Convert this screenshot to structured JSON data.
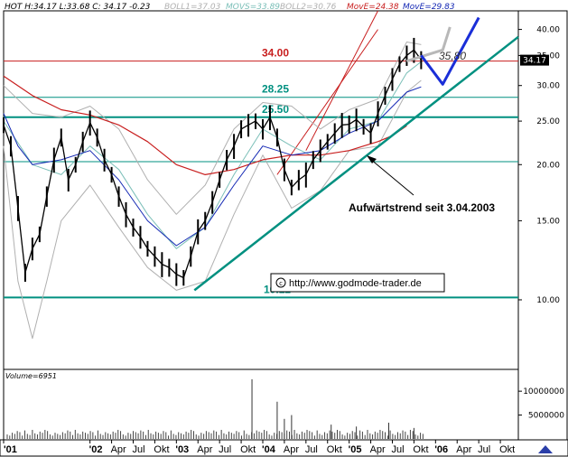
{
  "header": {
    "ticker_line": "HOT H:34.17 L:33.68 C: 34.17 -0.23",
    "boll1": "BOLL1=37.03",
    "movs": "MOVS=33.89",
    "boll2": "BOLL2=30.76",
    "move1": "MovE=24.38",
    "move2": "MovE=29.83"
  },
  "colors": {
    "price": "#000000",
    "boll": "#b0b0b0",
    "movs": "#7bbfb8",
    "move_red": "#c81e1e",
    "move_blue": "#1428b4",
    "level_teal": "#009080",
    "level_red": "#c81e1e",
    "trend_teal": "#009080",
    "projection_blue": "#1a2ed8",
    "projection_gray": "#b8b8b8",
    "channel_red": "#c81e1e",
    "grid": "#000000"
  },
  "chart_data": {
    "type": "line",
    "title": "",
    "x_ticks": [
      "'01",
      "'02",
      "Apr",
      "Jul",
      "Okt",
      "'03",
      "Apr",
      "Jul",
      "Okt",
      "'04",
      "Apr",
      "Jul",
      "Okt",
      "'05",
      "Apr",
      "Jul",
      "Okt",
      "'06",
      "Apr",
      "Jul",
      "Okt"
    ],
    "x_tick_months": [
      0,
      12,
      15,
      18,
      21,
      24,
      27,
      30,
      33,
      36,
      39,
      42,
      45,
      48,
      51,
      54,
      57,
      60,
      63,
      66,
      69
    ],
    "x_range_months": [
      0,
      71.5
    ],
    "y_ticks": [
      10,
      15,
      20,
      25,
      30,
      35,
      40
    ],
    "y_ticks_labels": [
      "10.00",
      "15.00",
      "20.00",
      "25.00",
      "30.00",
      "35.00",
      "40.00"
    ],
    "y_range": [
      7,
      44
    ],
    "y_scale": "log",
    "last_price": "34.17",
    "levels": [
      {
        "value": 34.0,
        "label": "34.00",
        "color": "#c81e1e"
      },
      {
        "value": 28.25,
        "label": "28.25",
        "color": "#009080"
      },
      {
        "value": 25.5,
        "label": "25.50",
        "color": "#009080"
      },
      {
        "value": 20.3,
        "label": "",
        "color": "#009080"
      },
      {
        "value": 10.12,
        "label": "10.12",
        "color": "#009080"
      }
    ],
    "annotations": {
      "trend_label": "Aufwärtstrend seit 3.04.2003",
      "target_label": "35,80",
      "copyright": "http://www.godmode-trader.de"
    },
    "price_series": [
      [
        0,
        24.5
      ],
      [
        1,
        22.0
      ],
      [
        2,
        16.0
      ],
      [
        3,
        11.5
      ],
      [
        4,
        13.0
      ],
      [
        5,
        14.0
      ],
      [
        6,
        17.0
      ],
      [
        7,
        20.5
      ],
      [
        8,
        23.0
      ],
      [
        9,
        18.5
      ],
      [
        10,
        20.0
      ],
      [
        11,
        22.5
      ],
      [
        12,
        24.8
      ],
      [
        13,
        23.0
      ],
      [
        14,
        20.5
      ],
      [
        15,
        19.0
      ],
      [
        16,
        17.0
      ],
      [
        17,
        15.5
      ],
      [
        18,
        14.5
      ],
      [
        19,
        13.8
      ],
      [
        20,
        13.0
      ],
      [
        21,
        12.5
      ],
      [
        22,
        12.0
      ],
      [
        23,
        11.8
      ],
      [
        24,
        11.4
      ],
      [
        25,
        11.2
      ],
      [
        26,
        12.5
      ],
      [
        27,
        14.2
      ],
      [
        28,
        15.0
      ],
      [
        29,
        16.5
      ],
      [
        30,
        18.5
      ],
      [
        31,
        20.5
      ],
      [
        32,
        22.0
      ],
      [
        33,
        24.0
      ],
      [
        34,
        24.5
      ],
      [
        35,
        25.0
      ],
      [
        36,
        24.0
      ],
      [
        37,
        25.5
      ],
      [
        38,
        23.0
      ],
      [
        39,
        19.5
      ],
      [
        40,
        17.8
      ],
      [
        41,
        18.5
      ],
      [
        42,
        19.0
      ],
      [
        43,
        20.5
      ],
      [
        44,
        21.5
      ],
      [
        45,
        22.5
      ],
      [
        46,
        23.5
      ],
      [
        47,
        24.5
      ],
      [
        48,
        24.6
      ],
      [
        49,
        25.2
      ],
      [
        50,
        24.3
      ],
      [
        51,
        23.5
      ],
      [
        52,
        26.0
      ],
      [
        53,
        28.5
      ],
      [
        54,
        31.0
      ],
      [
        55,
        33.5
      ],
      [
        56,
        35.0
      ],
      [
        57,
        36.0
      ],
      [
        58,
        34.2
      ]
    ],
    "boll_upper": [
      [
        0,
        30.0
      ],
      [
        4,
        26.0
      ],
      [
        8,
        25.5
      ],
      [
        12,
        27.0
      ],
      [
        16,
        24.0
      ],
      [
        20,
        18.5
      ],
      [
        24,
        15.5
      ],
      [
        28,
        18.0
      ],
      [
        32,
        24.0
      ],
      [
        36,
        27.5
      ],
      [
        40,
        27.0
      ],
      [
        44,
        24.0
      ],
      [
        48,
        26.5
      ],
      [
        52,
        28.0
      ],
      [
        56,
        37.5
      ],
      [
        58,
        37.0
      ]
    ],
    "boll_lower": [
      [
        0,
        22.0
      ],
      [
        2,
        11.0
      ],
      [
        4,
        8.2
      ],
      [
        6,
        11.0
      ],
      [
        8,
        15.0
      ],
      [
        12,
        18.0
      ],
      [
        16,
        14.5
      ],
      [
        20,
        11.8
      ],
      [
        24,
        10.5
      ],
      [
        28,
        11.0
      ],
      [
        32,
        15.5
      ],
      [
        36,
        21.0
      ],
      [
        40,
        16.0
      ],
      [
        44,
        17.5
      ],
      [
        48,
        21.5
      ],
      [
        52,
        22.0
      ],
      [
        56,
        29.0
      ],
      [
        58,
        30.8
      ]
    ],
    "movs_series": [
      [
        0,
        25.0
      ],
      [
        4,
        20.0
      ],
      [
        8,
        19.0
      ],
      [
        12,
        22.0
      ],
      [
        16,
        19.5
      ],
      [
        20,
        15.5
      ],
      [
        24,
        13.0
      ],
      [
        28,
        14.5
      ],
      [
        32,
        19.0
      ],
      [
        36,
        24.0
      ],
      [
        40,
        22.0
      ],
      [
        44,
        20.5
      ],
      [
        48,
        24.0
      ],
      [
        52,
        25.0
      ],
      [
        56,
        32.0
      ],
      [
        58,
        33.9
      ]
    ],
    "move_red_series": [
      [
        0,
        31.5
      ],
      [
        4,
        28.5
      ],
      [
        8,
        26.5
      ],
      [
        12,
        25.8
      ],
      [
        16,
        24.5
      ],
      [
        20,
        22.5
      ],
      [
        24,
        20.0
      ],
      [
        28,
        19.0
      ],
      [
        32,
        19.5
      ],
      [
        36,
        20.5
      ],
      [
        40,
        21.0
      ],
      [
        44,
        21.0
      ],
      [
        48,
        21.5
      ],
      [
        50,
        22.0
      ],
      [
        52,
        22.5
      ],
      [
        54,
        23.2
      ],
      [
        56,
        24.4
      ]
    ],
    "move_blue_series": [
      [
        0,
        26.0
      ],
      [
        2,
        22.0
      ],
      [
        4,
        20.0
      ],
      [
        8,
        20.5
      ],
      [
        12,
        21.5
      ],
      [
        16,
        18.5
      ],
      [
        20,
        15.0
      ],
      [
        24,
        13.2
      ],
      [
        28,
        14.5
      ],
      [
        32,
        18.0
      ],
      [
        36,
        22.0
      ],
      [
        40,
        21.0
      ],
      [
        44,
        21.5
      ],
      [
        48,
        23.5
      ],
      [
        52,
        25.0
      ],
      [
        56,
        29.0
      ],
      [
        58,
        29.8
      ]
    ],
    "trendline": [
      [
        26.5,
        10.5
      ],
      [
        71.5,
        38.5
      ]
    ],
    "channel_upper": [
      [
        42,
        21.5
      ],
      [
        52,
        44
      ]
    ],
    "channel_lower": [
      [
        38,
        19.0
      ],
      [
        52,
        40
      ]
    ],
    "projection_gray": [
      [
        56,
        34.0
      ],
      [
        61,
        36.0
      ],
      [
        62,
        40.5
      ]
    ],
    "projection_blue": [
      [
        58,
        35.0
      ],
      [
        61,
        30.2
      ],
      [
        66,
        42.5
      ]
    ],
    "volume": {
      "label": "Volume=6951",
      "y_ticks": [
        5000000,
        10000000
      ],
      "y_ticks_labels": [
        "5000000",
        "10000000"
      ],
      "y_range": [
        0,
        14000000
      ],
      "spikes": [
        [
          34.5,
          12500000
        ],
        [
          38.0,
          7800000
        ],
        [
          39.0,
          4200000
        ],
        [
          40.0,
          5000000
        ],
        [
          45.5,
          3000000
        ],
        [
          49.0,
          2600000
        ],
        [
          53.5,
          3400000
        ],
        [
          57.0,
          2300000
        ]
      ]
    }
  }
}
